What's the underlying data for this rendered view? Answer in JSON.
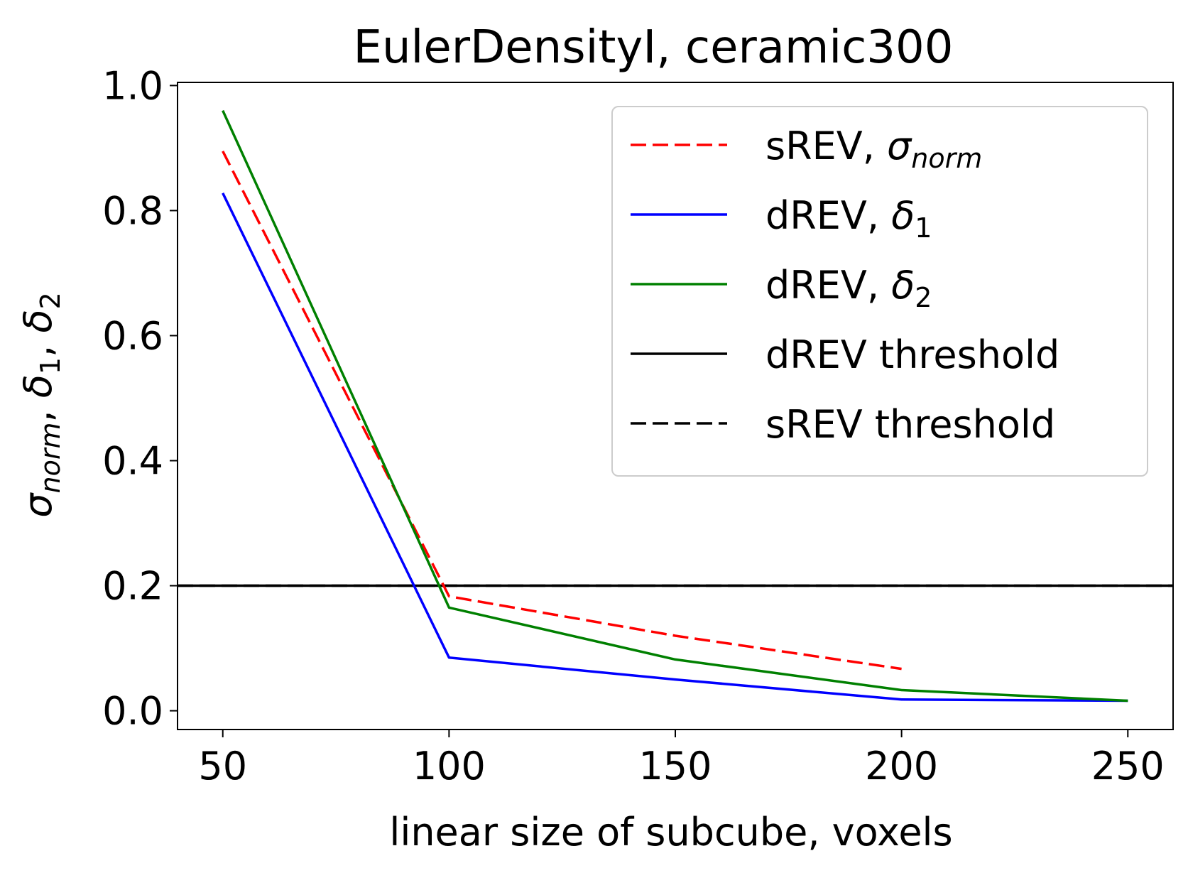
{
  "chart_data": {
    "type": "line",
    "title": "EulerDensityI, ceramic300",
    "xlabel": "linear size of subcube, voxels",
    "ylabel": {
      "sigma": "σ",
      "sigma_sub": "norm",
      "sep1": ", ",
      "delta1": "δ",
      "delta1_sub": "1",
      "sep2": ", ",
      "delta2": "δ",
      "delta2_sub": "2"
    },
    "xlim": [
      40,
      260
    ],
    "ylim": [
      -0.03,
      1.005
    ],
    "xticks": [
      50,
      100,
      150,
      200,
      250
    ],
    "yticks": [
      0.0,
      0.2,
      0.4,
      0.6,
      0.8,
      1.0
    ],
    "xtick_labels": [
      "50",
      "100",
      "150",
      "200",
      "250"
    ],
    "ytick_labels": [
      "0.0",
      "0.2",
      "0.4",
      "0.6",
      "0.8",
      "1.0"
    ],
    "grid": false,
    "legend_position": "top-right",
    "series": [
      {
        "name": "sREV, σnorm",
        "legend_main": "sREV, ",
        "legend_symbol": "σ",
        "legend_sub": "norm",
        "color": "#ff0000",
        "dash": "dashed",
        "x": [
          50,
          100,
          150,
          200
        ],
        "y": [
          0.895,
          0.183,
          0.12,
          0.067
        ]
      },
      {
        "name": "dREV, δ1",
        "legend_main": "dREV, ",
        "legend_symbol": "δ",
        "legend_sub": "1",
        "color": "#0000ff",
        "dash": "solid",
        "x": [
          50,
          100,
          150,
          200,
          250
        ],
        "y": [
          0.828,
          0.085,
          0.05,
          0.018,
          0.016
        ]
      },
      {
        "name": "dREV, δ2",
        "legend_main": "dREV, ",
        "legend_symbol": "δ",
        "legend_sub": "2",
        "color": "#008000",
        "dash": "solid",
        "x": [
          50,
          100,
          150,
          200,
          250
        ],
        "y": [
          0.96,
          0.165,
          0.082,
          0.033,
          0.016
        ]
      }
    ],
    "thresholds": [
      {
        "name": "dREV threshold",
        "y": 0.2,
        "color": "#000000",
        "dash": "solid"
      },
      {
        "name": "sREV threshold",
        "y": 0.2,
        "color": "#000000",
        "dash": "dashed"
      }
    ]
  }
}
